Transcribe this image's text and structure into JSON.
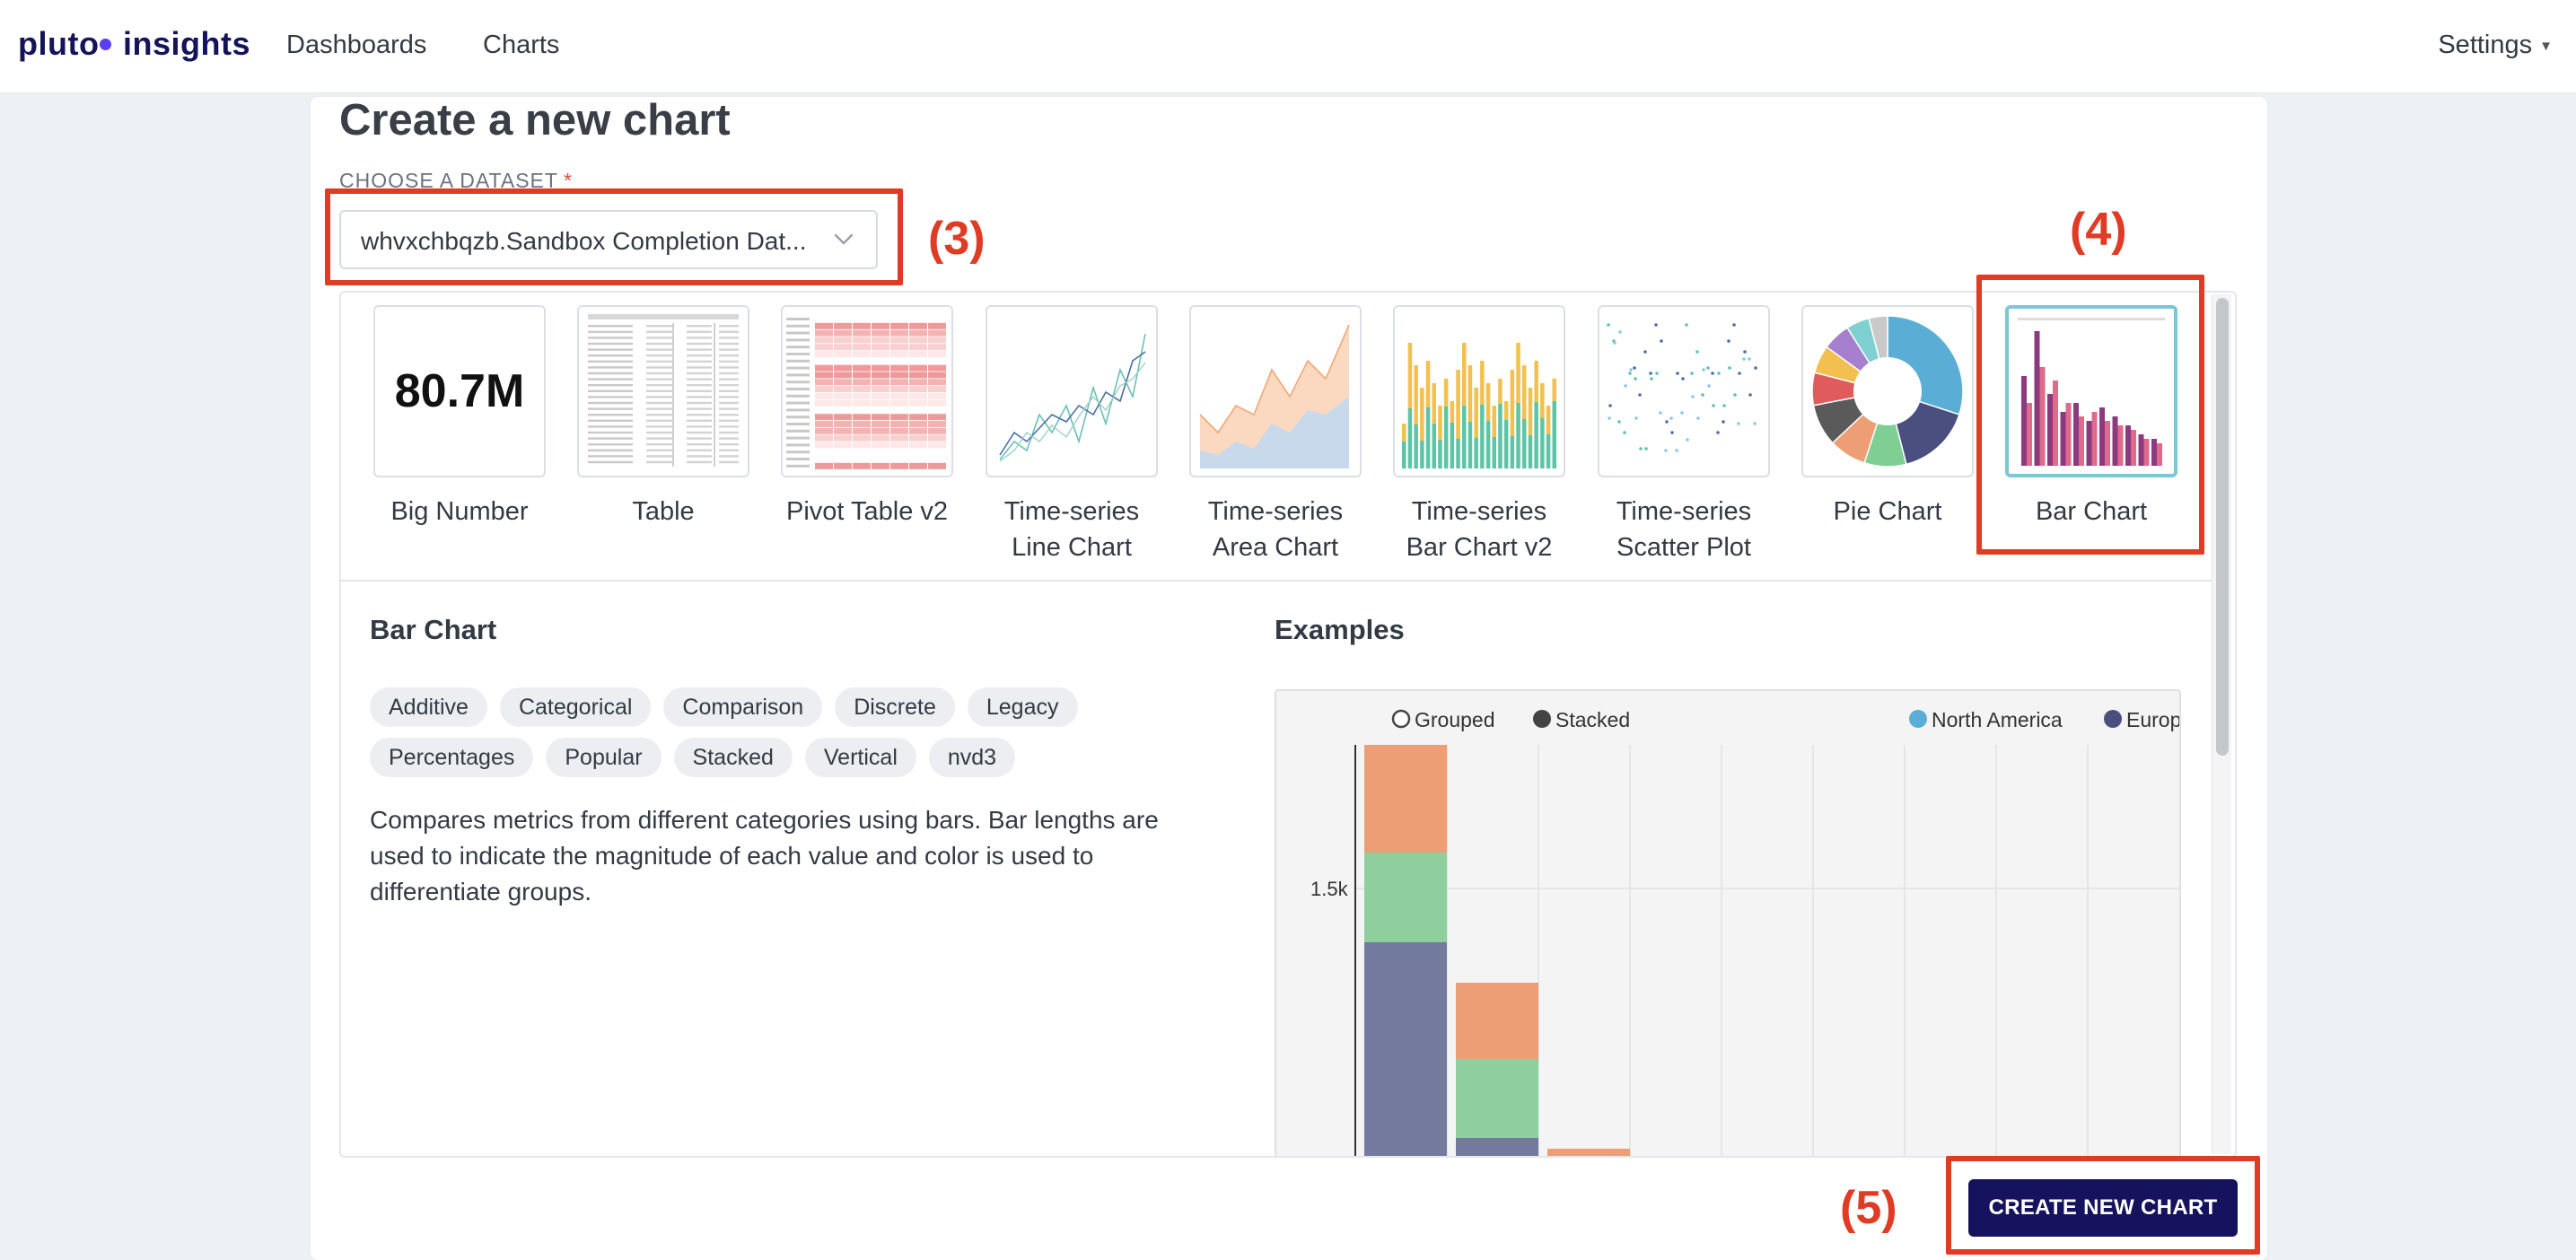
{
  "nav": {
    "brand_left": "pluto",
    "brand_right": "insights",
    "links": [
      "Dashboards",
      "Charts"
    ],
    "settings_label": "Settings"
  },
  "page": {
    "title": "Create a new chart",
    "dataset_label": "CHOOSE A DATASET",
    "dataset_required_marker": "*",
    "dataset_value": "whvxchbqzb.Sandbox Completion Dat..."
  },
  "viz_types": [
    {
      "id": "big-number",
      "line1": "Big Number",
      "line2": "",
      "preview_value": "80.7M"
    },
    {
      "id": "table",
      "line1": "Table",
      "line2": ""
    },
    {
      "id": "pivot-table-v2",
      "line1": "Pivot Table v2",
      "line2": ""
    },
    {
      "id": "time-series-line-chart",
      "line1": "Time-series",
      "line2": "Line Chart"
    },
    {
      "id": "time-series-area-chart",
      "line1": "Time-series",
      "line2": "Area Chart"
    },
    {
      "id": "time-series-bar-chart-v2",
      "line1": "Time-series",
      "line2": "Bar Chart v2"
    },
    {
      "id": "time-series-scatter-plot",
      "line1": "Time-series",
      "line2": "Scatter Plot"
    },
    {
      "id": "pie-chart",
      "line1": "Pie Chart",
      "line2": ""
    },
    {
      "id": "bar-chart",
      "line1": "Bar Chart",
      "line2": "",
      "selected": true
    }
  ],
  "details": {
    "title": "Bar Chart",
    "tags": [
      "Additive",
      "Categorical",
      "Comparison",
      "Discrete",
      "Legacy",
      "Percentages",
      "Popular",
      "Stacked",
      "Vertical",
      "nvd3"
    ],
    "description": "Compares metrics from different categories using bars. Bar lengths are used to indicate the magnitude of each value and color is used to differentiate groups.",
    "examples_title": "Examples"
  },
  "example_chart": {
    "controls": [
      "Grouped",
      "Stacked"
    ],
    "legend": [
      "North America",
      "Europ"
    ],
    "y_tick": "1.5k"
  },
  "actions": {
    "create_label": "CREATE NEW CHART"
  },
  "annotations": [
    "(3)",
    "(4)",
    "(5)"
  ],
  "colors": {
    "brand": "#14145a",
    "primary_button": "#15125e",
    "annotation": "#e03b24",
    "selected_border": "#7cc6d9"
  }
}
